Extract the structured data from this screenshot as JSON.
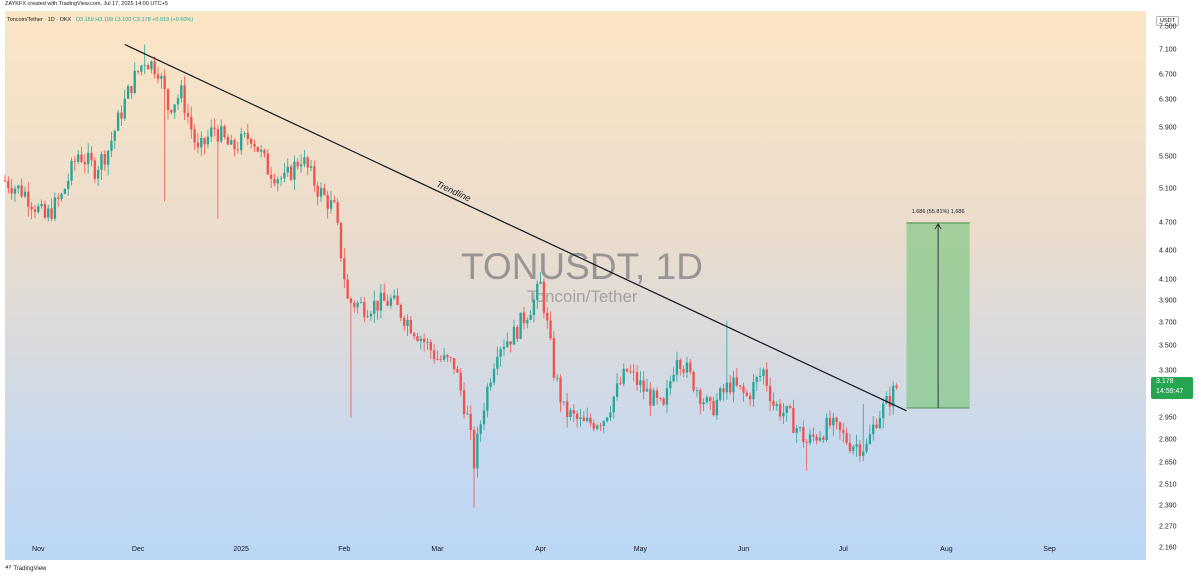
{
  "header": {
    "credit": "ZAYKFX created with TradingView.com, Jul 17, 2025 14:00 UTC+5",
    "symbol_line": "Toncoin/Tether · 1D · OKX",
    "ohlc": "O3.159 H3.199 L3.100 C3.178 +0.019 (+0.60%)"
  },
  "watermark": {
    "title": "TONUSDT, 1D",
    "subtitle": "Toncoin/Tether"
  },
  "price_axis": {
    "currency": "USDT",
    "last_price": "3.178",
    "countdown": "14:59:47"
  },
  "footer": {
    "brand": "TradingView"
  },
  "colors": {
    "up": "#26a69a",
    "down": "#ef5350",
    "target_box": "#81c784",
    "trendline": "#131722",
    "last_price": "#26a651"
  },
  "chart_data": {
    "type": "candlestick",
    "symbol": "TONUSDT",
    "interval": "1D",
    "y_scale": "log",
    "ylim": [
      2.1,
      7.8
    ],
    "y_ticks": [
      7.5,
      7.1,
      6.7,
      6.3,
      5.9,
      5.5,
      5.1,
      4.7,
      4.4,
      4.1,
      3.9,
      3.7,
      3.5,
      3.3,
      2.95,
      2.8,
      2.65,
      2.51,
      2.39,
      2.27,
      2.16
    ],
    "y_tick_labels": [
      "7.500",
      "7.100",
      "6.700",
      "6.300",
      "5.900",
      "5.500",
      "5.100",
      "4.700",
      "4.400",
      "4.100",
      "3.900",
      "3.700",
      "3.500",
      "3.300",
      "2.950",
      "2.800",
      "2.650",
      "2.510",
      "2.390",
      "2.270",
      "2.160"
    ],
    "x_range": [
      "2024-10-22",
      "2025-09-30"
    ],
    "x_ticks": [
      {
        "date": "2024-11-01",
        "label": "Nov"
      },
      {
        "date": "2024-12-01",
        "label": "Dec"
      },
      {
        "date": "2025-01-01",
        "label": "2025"
      },
      {
        "date": "2025-02-01",
        "label": "Feb"
      },
      {
        "date": "2025-03-01",
        "label": "Mar"
      },
      {
        "date": "2025-04-01",
        "label": "Apr"
      },
      {
        "date": "2025-05-01",
        "label": "May"
      },
      {
        "date": "2025-06-01",
        "label": "Jun"
      },
      {
        "date": "2025-07-01",
        "label": "Jul"
      },
      {
        "date": "2025-08-01",
        "label": "Aug"
      },
      {
        "date": "2025-09-01",
        "label": "Sep"
      }
    ],
    "price_path": [
      [
        "2024-10-22",
        5.2
      ],
      [
        "2024-10-28",
        5.05
      ],
      [
        "2024-11-03",
        4.75
      ],
      [
        "2024-11-08",
        5.0
      ],
      [
        "2024-11-13",
        5.55
      ],
      [
        "2024-11-18",
        5.35
      ],
      [
        "2024-11-22",
        5.6
      ],
      [
        "2024-11-25",
        6.0
      ],
      [
        "2024-11-29",
        6.55
      ],
      [
        "2024-12-03",
        6.95
      ],
      [
        "2024-12-07",
        6.8
      ],
      [
        "2024-12-10",
        6.2
      ],
      [
        "2024-12-14",
        6.4
      ],
      [
        "2024-12-19",
        5.55
      ],
      [
        "2024-12-24",
        5.9
      ],
      [
        "2024-12-29",
        5.6
      ],
      [
        "2025-01-04",
        5.8
      ],
      [
        "2025-01-09",
        5.35
      ],
      [
        "2025-01-14",
        5.2
      ],
      [
        "2025-01-19",
        5.5
      ],
      [
        "2025-01-24",
        5.1
      ],
      [
        "2025-01-29",
        4.85
      ],
      [
        "2025-02-02",
        3.9
      ],
      [
        "2025-02-07",
        3.85
      ],
      [
        "2025-02-15",
        3.9
      ],
      [
        "2025-02-22",
        3.65
      ],
      [
        "2025-03-01",
        3.4
      ],
      [
        "2025-03-06",
        3.35
      ],
      [
        "2025-03-10",
        2.95
      ],
      [
        "2025-03-12",
        2.65
      ],
      [
        "2025-03-15",
        3.05
      ],
      [
        "2025-03-19",
        3.5
      ],
      [
        "2025-03-24",
        3.6
      ],
      [
        "2025-03-30",
        3.9
      ],
      [
        "2025-04-01",
        4.05
      ],
      [
        "2025-04-05",
        3.3
      ],
      [
        "2025-04-08",
        3.0
      ],
      [
        "2025-04-14",
        2.9
      ],
      [
        "2025-04-20",
        2.95
      ],
      [
        "2025-04-27",
        3.3
      ],
      [
        "2025-05-04",
        3.1
      ],
      [
        "2025-05-08",
        3.0
      ],
      [
        "2025-05-12",
        3.45
      ],
      [
        "2025-05-16",
        3.25
      ],
      [
        "2025-05-22",
        3.0
      ],
      [
        "2025-05-28",
        3.2
      ],
      [
        "2025-06-02",
        3.1
      ],
      [
        "2025-06-07",
        3.3
      ],
      [
        "2025-06-10",
        3.05
      ],
      [
        "2025-06-15",
        2.95
      ],
      [
        "2025-06-20",
        2.78
      ],
      [
        "2025-06-27",
        2.9
      ],
      [
        "2025-07-03",
        2.78
      ],
      [
        "2025-07-08",
        2.75
      ],
      [
        "2025-07-11",
        2.95
      ],
      [
        "2025-07-14",
        3.05
      ],
      [
        "2025-07-17",
        3.178
      ]
    ],
    "spikes": [
      {
        "date": "2024-12-03",
        "high": 7.2
      },
      {
        "date": "2024-12-09",
        "low": 4.95
      },
      {
        "date": "2024-12-25",
        "low": 4.75
      },
      {
        "date": "2025-02-03",
        "low": 2.95
      },
      {
        "date": "2025-03-12",
        "low": 2.38
      },
      {
        "date": "2025-04-01",
        "high": 4.18
      },
      {
        "date": "2025-05-27",
        "high": 3.72
      },
      {
        "date": "2025-06-20",
        "low": 2.6
      },
      {
        "date": "2025-07-07",
        "high": 3.05
      }
    ],
    "trendline": {
      "label": "Trendline",
      "start": {
        "date": "2024-11-27",
        "price": 7.2
      },
      "end": {
        "date": "2025-07-20",
        "price": 3.0
      }
    },
    "measure_box": {
      "label": "1.686 (55.81%) 1,686",
      "start_date": "2025-07-20",
      "end_date": "2025-08-08",
      "low": 3.02,
      "high": 4.7
    }
  }
}
